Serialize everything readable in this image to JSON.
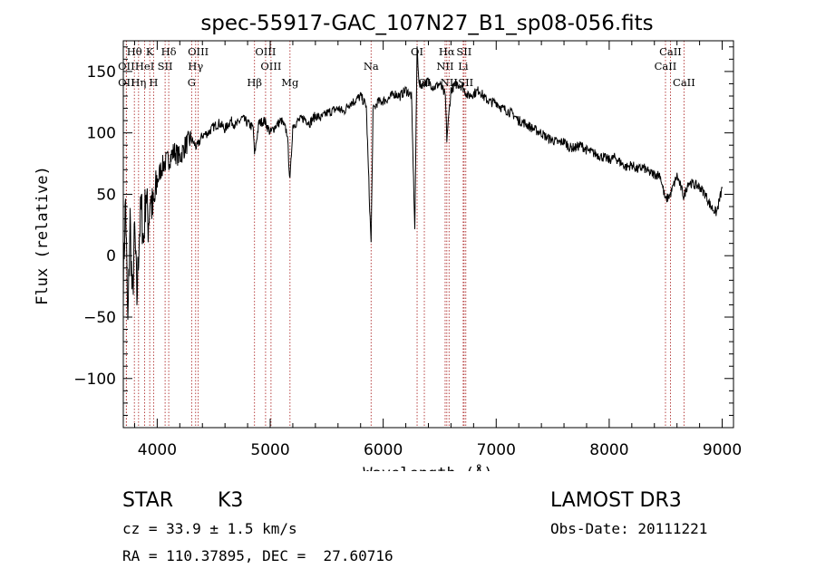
{
  "chart_data": {
    "type": "line",
    "title": "spec-55917-GAC_107N27_B1_sp08-056.fits",
    "xlabel": "Wavelength (Å)",
    "ylabel": "Flux (relative)",
    "xlim": [
      3700,
      9100
    ],
    "ylim": [
      -140,
      175
    ],
    "x_ticks": [
      4000,
      5000,
      6000,
      7000,
      8000,
      9000
    ],
    "y_ticks": [
      -100,
      -50,
      0,
      50,
      100,
      150
    ],
    "grid": false,
    "series": [
      {
        "name": "flux",
        "x": [
          3700,
          3720,
          3740,
          3760,
          3780,
          3800,
          3820,
          3840,
          3860,
          3880,
          3900,
          3920,
          3940,
          3960,
          3980,
          4000,
          4030,
          4060,
          4100,
          4150,
          4200,
          4250,
          4300,
          4350,
          4400,
          4450,
          4500,
          4550,
          4600,
          4650,
          4700,
          4750,
          4800,
          4850,
          4861,
          4900,
          4950,
          5000,
          5050,
          5100,
          5150,
          5175,
          5200,
          5250,
          5300,
          5350,
          5400,
          5450,
          5500,
          5550,
          5600,
          5650,
          5700,
          5750,
          5800,
          5850,
          5880,
          5893,
          5910,
          5950,
          6000,
          6050,
          6100,
          6150,
          6200,
          6250,
          6280,
          6300,
          6320,
          6350,
          6400,
          6450,
          6500,
          6550,
          6563,
          6600,
          6650,
          6700,
          6750,
          6800,
          6850,
          6900,
          6950,
          7000,
          7050,
          7100,
          7150,
          7200,
          7250,
          7300,
          7350,
          7400,
          7450,
          7500,
          7550,
          7600,
          7650,
          7700,
          7750,
          7800,
          7850,
          7900,
          7950,
          8000,
          8050,
          8100,
          8150,
          8200,
          8250,
          8300,
          8350,
          8400,
          8450,
          8498,
          8542,
          8600,
          8662,
          8700,
          8750,
          8800,
          8850,
          8900,
          8950,
          9000
        ],
        "values": [
          -20,
          45,
          -60,
          30,
          -40,
          20,
          -35,
          15,
          40,
          10,
          55,
          25,
          50,
          35,
          45,
          60,
          70,
          75,
          78,
          85,
          80,
          90,
          95,
          88,
          98,
          100,
          105,
          108,
          103,
          110,
          106,
          112,
          108,
          104,
          82,
          108,
          110,
          100,
          106,
          110,
          100,
          60,
          106,
          110,
          112,
          108,
          114,
          112,
          116,
          118,
          120,
          117,
          124,
          126,
          130,
          122,
          40,
          10,
          118,
          125,
          126,
          128,
          132,
          130,
          135,
          130,
          20,
          170,
          138,
          140,
          142,
          137,
          140,
          130,
          95,
          135,
          140,
          138,
          130,
          132,
          135,
          128,
          125,
          125,
          120,
          118,
          115,
          110,
          108,
          105,
          102,
          100,
          96,
          94,
          92,
          93,
          88,
          88,
          90,
          86,
          84,
          82,
          80,
          78,
          80,
          76,
          72,
          74,
          70,
          72,
          68,
          66,
          66,
          45,
          50,
          65,
          48,
          60,
          58,
          56,
          50,
          40,
          35,
          55
        ]
      }
    ],
    "line_annotations": [
      {
        "label": "Hθ",
        "x": 3798,
        "row": 1
      },
      {
        "label": "OII",
        "x": 3727,
        "row": 2
      },
      {
        "label": "OII",
        "x": 3727,
        "row": 3
      },
      {
        "label": "Hη",
        "x": 3835,
        "row": 3
      },
      {
        "label": "K",
        "x": 3934,
        "row": 1
      },
      {
        "label": "HeI",
        "x": 3889,
        "row": 2
      },
      {
        "label": "SII",
        "x": 4070,
        "row": 2
      },
      {
        "label": "H",
        "x": 3968,
        "row": 3
      },
      {
        "label": "Hδ",
        "x": 4102,
        "row": 1
      },
      {
        "label": "OIII",
        "x": 4363,
        "row": 1
      },
      {
        "label": "Hγ",
        "x": 4340,
        "row": 2
      },
      {
        "label": "G",
        "x": 4305,
        "row": 3
      },
      {
        "label": "Hβ",
        "x": 4861,
        "row": 3
      },
      {
        "label": "OIII",
        "x": 4959,
        "row": 1
      },
      {
        "label": "OIII",
        "x": 5007,
        "row": 2
      },
      {
        "label": "Mg",
        "x": 5175,
        "row": 3
      },
      {
        "label": "Na",
        "x": 5893,
        "row": 2
      },
      {
        "label": "OI",
        "x": 6300,
        "row": 1
      },
      {
        "label": "OI",
        "x": 6364,
        "row": 3
      },
      {
        "label": "Hα",
        "x": 6563,
        "row": 1
      },
      {
        "label": "SII",
        "x": 6716,
        "row": 1
      },
      {
        "label": "NII",
        "x": 6548,
        "row": 2
      },
      {
        "label": "Li",
        "x": 6708,
        "row": 2
      },
      {
        "label": "NII",
        "x": 6583,
        "row": 3
      },
      {
        "label": "SII",
        "x": 6731,
        "row": 3
      },
      {
        "label": "CaII",
        "x": 8542,
        "row": 1
      },
      {
        "label": "CaII",
        "x": 8498,
        "row": 2
      },
      {
        "label": "CaII",
        "x": 8662,
        "row": 3
      }
    ],
    "colors": {
      "spectrum": "#000000",
      "line_marker": "#b03030"
    }
  },
  "info": {
    "object_class": "STAR",
    "subclass": "K3",
    "survey": "LAMOST DR3",
    "cz": "cz = 33.9 ± 1.5 km/s",
    "obs_date": "Obs-Date: 20111221",
    "coords": "RA = 110.37895, DEC =  27.60716"
  }
}
